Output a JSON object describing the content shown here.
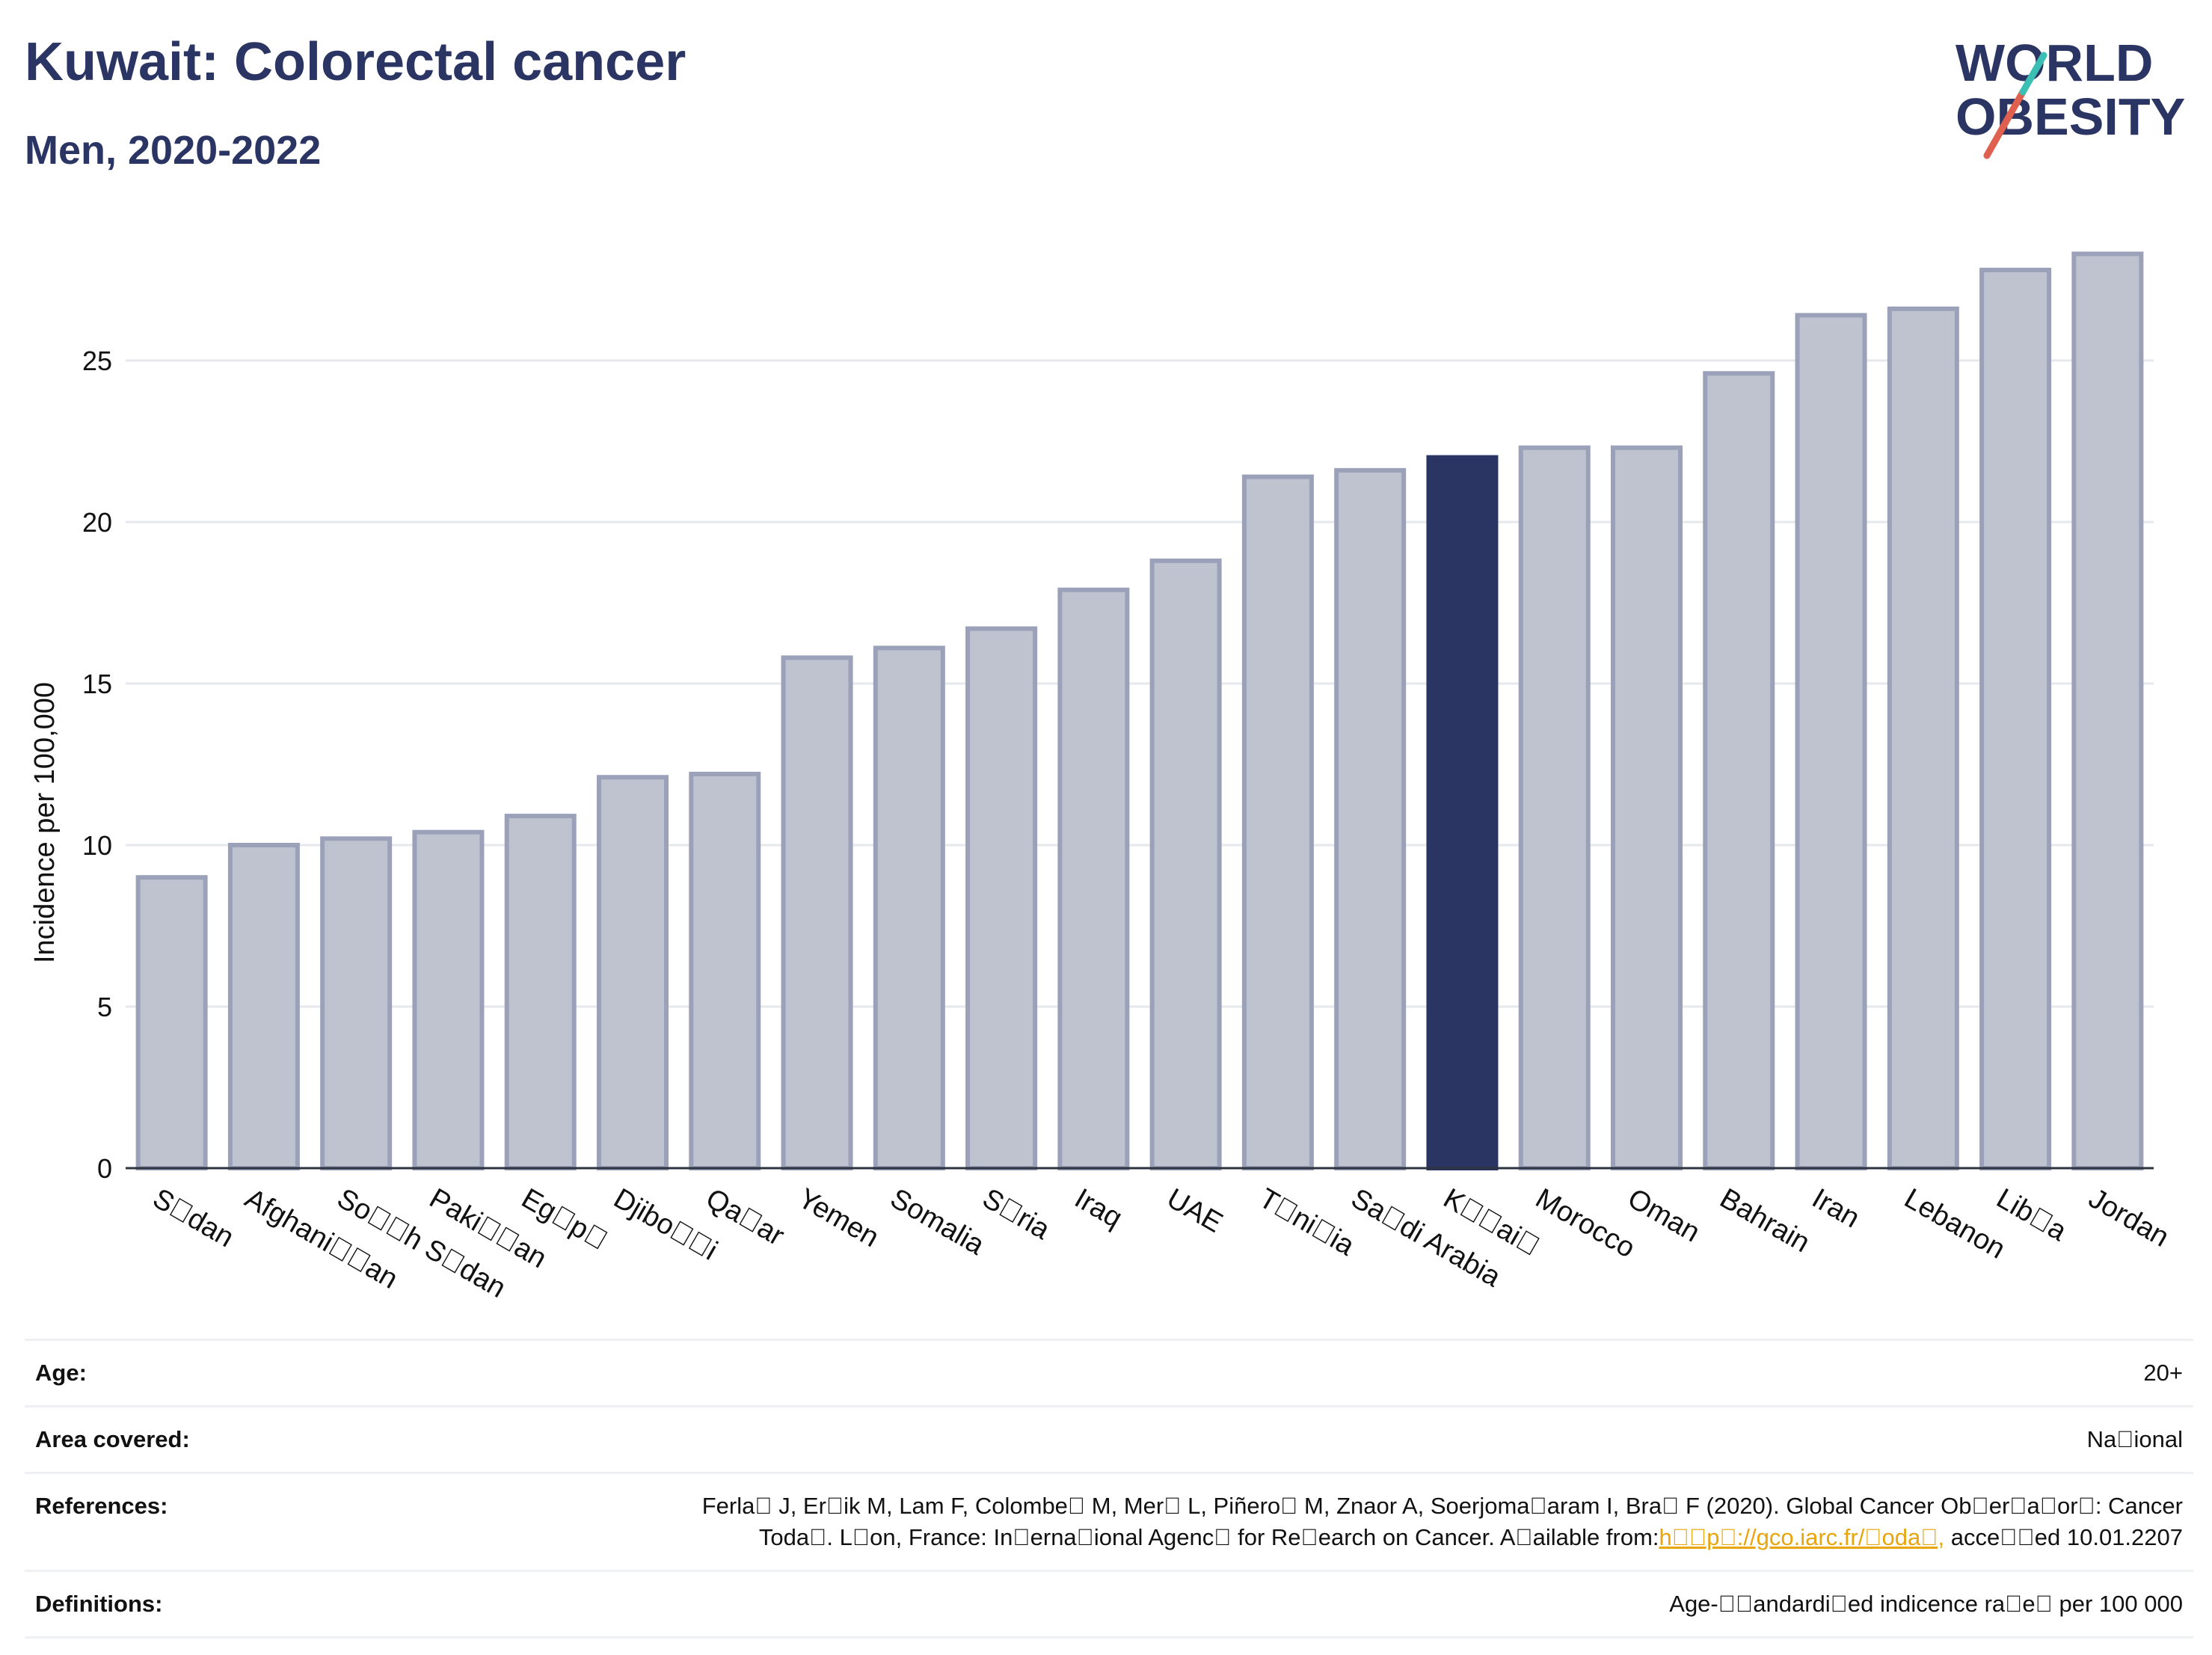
{
  "header": {
    "title": "Kuwait: Colorectal cancer",
    "subtitle": "Men, 2020-2022"
  },
  "logo": {
    "line1": "WORLD",
    "line2": "OBESITY",
    "brand_color": "#2b3563",
    "slash_colors": [
      "#e0604f",
      "#3bbfb5"
    ]
  },
  "chart_data": {
    "type": "bar",
    "title": "Kuwait: Colorectal cancer",
    "subtitle": "Men, 2020-2022",
    "ylabel": "Incidence per 100,000",
    "xlabel": "",
    "ylim": [
      0,
      29
    ],
    "yticks": [
      0,
      5,
      10,
      15,
      20,
      25
    ],
    "grid": true,
    "categories": [
      "S\u0000dan",
      "Afghani\u0000\u0000an",
      "So\u0000\u0000h S\u0000dan",
      "Paki\u0000\u0000an",
      "Eg\u0000p\u0000",
      "Djibo\u0000\u0000i",
      "Qa\u0000ar",
      "Yemen",
      "Somalia",
      "S\u0000ria",
      "Iraq",
      "UAE",
      "T\u0000ni\u0000ia",
      "Sa\u0000di Arabia",
      "K\u0000\u0000ai\u0000",
      "Morocco",
      "Oman",
      "Bahrain",
      "Iran",
      "Lebanon",
      "Lib\u0000a",
      "Jordan"
    ],
    "values": [
      9.0,
      10.0,
      10.2,
      10.4,
      10.9,
      12.1,
      12.2,
      15.8,
      16.1,
      16.7,
      17.9,
      18.8,
      21.4,
      21.6,
      22.0,
      22.3,
      22.3,
      24.6,
      26.4,
      26.6,
      27.8,
      28.3
    ],
    "highlight_index": 14,
    "colors": {
      "bar": "#bfc3d0",
      "bar_edge": "#9aa1b8",
      "highlight": "#2b3563",
      "grid": "#e6e8ee",
      "axis": "#2e3340"
    }
  },
  "info": {
    "age_label": "Age:",
    "age_value": "20+",
    "area_label": "Area covered:",
    "area_value": "Na\u0000ional",
    "references_label": "References:",
    "references_line1": "Ferla\u0000 J, Er\u0000ik M, Lam F, Colombe\u0000 M, Mer\u0000 L, Piñero\u0000 M, Znaor A, Soerjoma\u0000aram I, Bra\u0000 F (2020). Global Cancer Ob\u0000er\u0000a\u0000or\u0000: Cancer",
    "references_line2_prefix": "Toda\u0000. L\u0000on, France: In\u0000erna\u0000ional Agenc\u0000 for Re\u0000earch on Cancer. A\u0000ailable from:",
    "references_link": "h\u0000\u0000p\u0000://gco.iarc.fr/\u0000oda\u0000,",
    "references_line2_suffix": " acce\u0000\u0000ed 10.01.2207",
    "definitions_label": "Definitions:",
    "definitions_value": "Age-\u0000\u0000andardi\u0000ed indicence ra\u0000e\u0000 per 100 000"
  }
}
